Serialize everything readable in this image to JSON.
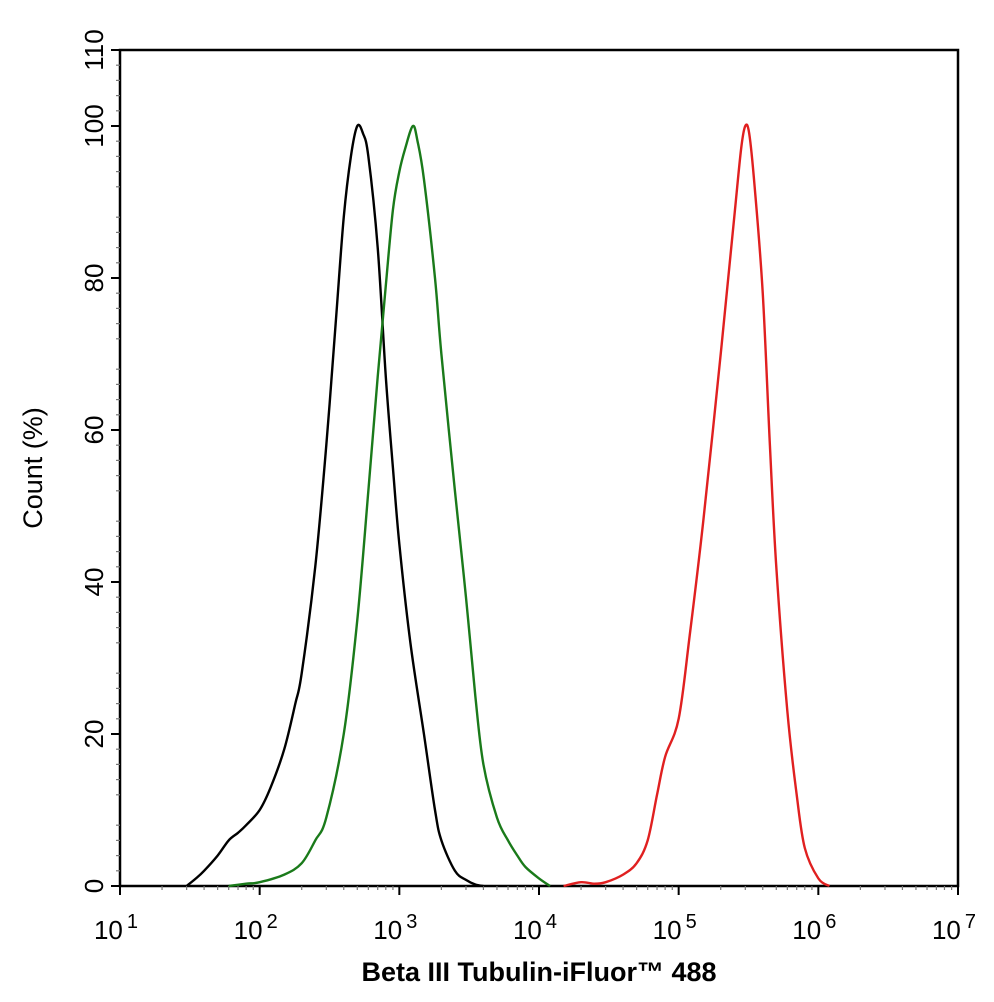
{
  "chart_data": {
    "type": "line",
    "title": "",
    "xlabel": "Beta III Tubulin-iFluor™ 488",
    "ylabel": "Count  (%)",
    "x_scale": "log",
    "xlim": [
      10,
      10000000
    ],
    "ylim": [
      0,
      110
    ],
    "grid": false,
    "legend": "none",
    "x_ticks": [
      {
        "base": "10",
        "exp": "1"
      },
      {
        "base": "10",
        "exp": "2"
      },
      {
        "base": "10",
        "exp": "3"
      },
      {
        "base": "10",
        "exp": "4"
      },
      {
        "base": "10",
        "exp": "5"
      },
      {
        "base": "10",
        "exp": "6"
      },
      {
        "base": "10",
        "exp": "7"
      }
    ],
    "y_ticks": [
      "0",
      "20",
      "40",
      "60",
      "80",
      "100",
      "110"
    ],
    "series": [
      {
        "color": "#000000",
        "x": [
          30,
          35,
          40,
          50,
          60,
          70,
          80,
          100,
          120,
          150,
          180,
          200,
          250,
          300,
          350,
          400,
          450,
          500,
          550,
          600,
          700,
          800,
          900,
          1000,
          1200,
          1500,
          1800,
          2000,
          2500,
          3000,
          3500,
          4000
        ],
        "y": [
          0,
          1,
          2,
          4,
          6,
          7,
          8,
          10,
          13,
          18,
          24,
          28,
          42,
          58,
          74,
          88,
          96,
          100,
          99,
          96,
          84,
          67,
          55,
          45,
          32,
          20,
          10,
          6,
          2,
          0.8,
          0.2,
          0
        ]
      },
      {
        "color": "#1a7a1a",
        "x": [
          60,
          80,
          100,
          150,
          200,
          250,
          300,
          400,
          500,
          600,
          700,
          800,
          900,
          1000,
          1100,
          1250,
          1350,
          1500,
          1800,
          2000,
          2500,
          3000,
          3500,
          4000,
          5000,
          6000,
          7000,
          8000,
          10000,
          12000
        ],
        "y": [
          0,
          0.3,
          0.5,
          1.5,
          3,
          6,
          9,
          20,
          35,
          52,
          67,
          79,
          89,
          94,
          97,
          100,
          98,
          93,
          80,
          70,
          52,
          38,
          25,
          16,
          9,
          6,
          4,
          2.5,
          1,
          0
        ]
      },
      {
        "color": "#e02020",
        "x": [
          15000,
          20000,
          25000,
          30000,
          40000,
          50000,
          60000,
          70000,
          80000,
          100000,
          120000,
          150000,
          200000,
          250000,
          280000,
          300000,
          320000,
          350000,
          400000,
          450000,
          500000,
          600000,
          700000,
          800000,
          1000000,
          1200000
        ],
        "y": [
          0,
          0.5,
          0.3,
          0.5,
          1.5,
          3,
          6,
          12,
          17,
          22,
          33,
          48,
          70,
          88,
          97,
          100,
          99,
          92,
          78,
          58,
          42,
          23,
          12,
          5,
          1,
          0
        ]
      }
    ]
  }
}
